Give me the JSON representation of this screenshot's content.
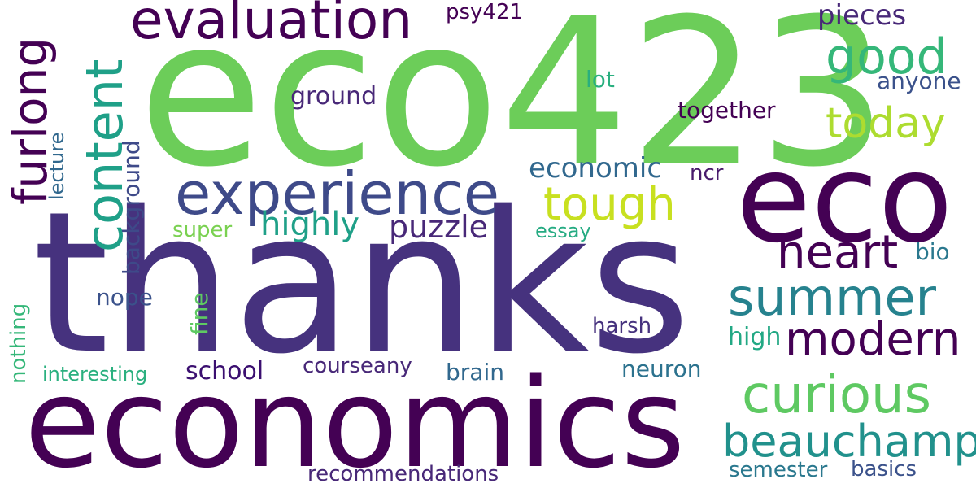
{
  "words": [
    {
      "text": "eco423",
      "color": "#6ccd59"
    },
    {
      "text": "thanks",
      "color": "#46327e"
    },
    {
      "text": "economics",
      "color": "#440154"
    },
    {
      "text": "eco",
      "color": "#440154"
    },
    {
      "text": "experience",
      "color": "#3e4a89"
    },
    {
      "text": "evaluation",
      "color": "#440154"
    },
    {
      "text": "content",
      "color": "#1fa088"
    },
    {
      "text": "furlong",
      "color": "#440154"
    },
    {
      "text": "good",
      "color": "#35b779"
    },
    {
      "text": "today",
      "color": "#addc30"
    },
    {
      "text": "tough",
      "color": "#c8e020"
    },
    {
      "text": "summer",
      "color": "#26828e"
    },
    {
      "text": "heart",
      "color": "#440154"
    },
    {
      "text": "modern",
      "color": "#440154"
    },
    {
      "text": "curious",
      "color": "#5ec962"
    },
    {
      "text": "beauchamp",
      "color": "#21918c"
    },
    {
      "text": "highly",
      "color": "#1fa088"
    },
    {
      "text": "puzzle",
      "color": "#482878"
    },
    {
      "text": "economic",
      "color": "#31688e"
    },
    {
      "text": "pieces",
      "color": "#482878"
    },
    {
      "text": "psy421",
      "color": "#440154"
    },
    {
      "text": "lot",
      "color": "#29af7f"
    },
    {
      "text": "anyone",
      "color": "#3b528b"
    },
    {
      "text": "ground",
      "color": "#482878"
    },
    {
      "text": "together",
      "color": "#440154"
    },
    {
      "text": "lecture",
      "color": "#31688e"
    },
    {
      "text": "background",
      "color": "#3e4a89"
    },
    {
      "text": "ncr",
      "color": "#481a6c"
    },
    {
      "text": "super",
      "color": "#7ad151"
    },
    {
      "text": "essay",
      "color": "#25ab82"
    },
    {
      "text": "bio",
      "color": "#2a788e"
    },
    {
      "text": "nope",
      "color": "#3b528b"
    },
    {
      "text": "fine",
      "color": "#5ec962"
    },
    {
      "text": "nothing",
      "color": "#35b779"
    },
    {
      "text": "harsh",
      "color": "#46327e"
    },
    {
      "text": "high",
      "color": "#22a884"
    },
    {
      "text": "interesting",
      "color": "#2ab07f"
    },
    {
      "text": "school",
      "color": "#3b0f70"
    },
    {
      "text": "courseany",
      "color": "#482878"
    },
    {
      "text": "brain",
      "color": "#31688e"
    },
    {
      "text": "neuron",
      "color": "#2c728e"
    },
    {
      "text": "recommendations",
      "color": "#482878"
    },
    {
      "text": "semester",
      "color": "#2a788e"
    },
    {
      "text": "basics",
      "color": "#3b528b"
    }
  ]
}
